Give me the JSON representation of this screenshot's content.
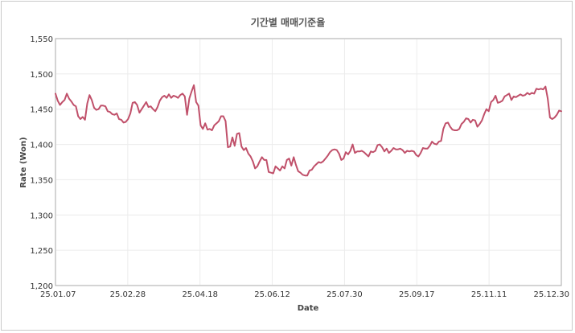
{
  "chart_data": {
    "type": "line",
    "title": "기간별 매매기준율",
    "xlabel": "Date",
    "ylabel": "Rate (Won)",
    "ylim": [
      1200,
      1550
    ],
    "yticks": [
      1200,
      1250,
      1300,
      1350,
      1400,
      1450,
      1500,
      1550
    ],
    "ytick_labels": [
      "1,200",
      "1,250",
      "1,300",
      "1,350",
      "1,400",
      "1,450",
      "1,500",
      "1,550"
    ],
    "xtick_labels": [
      "25.01.07",
      "25.02.28",
      "25.04.18",
      "25.06.12",
      "25.07.30",
      "25.09.17",
      "25.11.11",
      "25.12.30"
    ],
    "grid": true,
    "color": "#c0506a",
    "series": [
      {
        "values": [
          1472,
          1462,
          1456,
          1460,
          1463,
          1472,
          1465,
          1461,
          1456,
          1454,
          1440,
          1436,
          1439,
          1435,
          1458,
          1470,
          1463,
          1452,
          1449,
          1450,
          1455,
          1455,
          1454,
          1447,
          1446,
          1443,
          1442,
          1444,
          1436,
          1435,
          1431,
          1432,
          1436,
          1444,
          1459,
          1460,
          1456,
          1445,
          1450,
          1455,
          1460,
          1453,
          1454,
          1450,
          1447,
          1453,
          1462,
          1467,
          1469,
          1466,
          1471,
          1466,
          1469,
          1468,
          1466,
          1470,
          1472,
          1468,
          1442,
          1465,
          1475,
          1484,
          1460,
          1455,
          1427,
          1422,
          1430,
          1421,
          1422,
          1420,
          1427,
          1430,
          1433,
          1440,
          1440,
          1433,
          1396,
          1397,
          1410,
          1398,
          1415,
          1416,
          1397,
          1392,
          1395,
          1387,
          1383,
          1376,
          1366,
          1369,
          1376,
          1382,
          1378,
          1378,
          1361,
          1360,
          1359,
          1369,
          1366,
          1363,
          1369,
          1366,
          1378,
          1380,
          1370,
          1382,
          1371,
          1362,
          1360,
          1357,
          1356,
          1356,
          1363,
          1364,
          1369,
          1372,
          1375,
          1374,
          1376,
          1380,
          1384,
          1389,
          1392,
          1393,
          1392,
          1387,
          1378,
          1380,
          1389,
          1386,
          1391,
          1400,
          1388,
          1390,
          1390,
          1391,
          1389,
          1386,
          1383,
          1390,
          1389,
          1391,
          1399,
          1400,
          1396,
          1390,
          1394,
          1388,
          1391,
          1395,
          1393,
          1393,
          1394,
          1392,
          1388,
          1391,
          1390,
          1391,
          1390,
          1385,
          1383,
          1388,
          1395,
          1394,
          1394,
          1398,
          1404,
          1401,
          1400,
          1404,
          1405,
          1422,
          1430,
          1431,
          1425,
          1421,
          1420,
          1420,
          1422,
          1429,
          1432,
          1437,
          1436,
          1431,
          1435,
          1434,
          1425,
          1429,
          1434,
          1443,
          1450,
          1447,
          1460,
          1463,
          1469,
          1459,
          1460,
          1462,
          1468,
          1470,
          1472,
          1463,
          1468,
          1467,
          1469,
          1471,
          1469,
          1470,
          1473,
          1471,
          1473,
          1472,
          1479,
          1478,
          1479,
          1478,
          1482,
          1465,
          1438,
          1436,
          1438,
          1442,
          1448,
          1447
        ]
      }
    ]
  }
}
